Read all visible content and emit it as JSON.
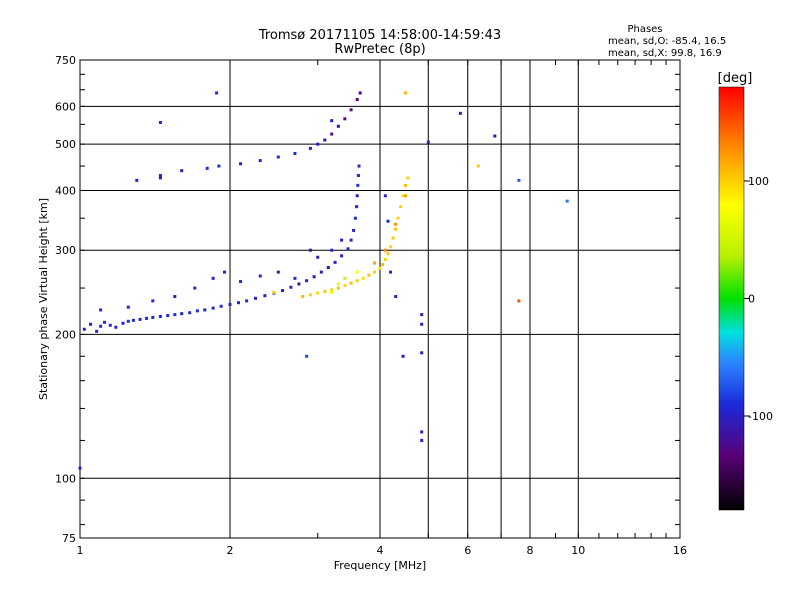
{
  "chart_data": {
    "type": "scatter",
    "title": "Tromsø 20171105 14:58:00-14:59:43",
    "subtitle": "RwPretec (8p)",
    "stats": {
      "heading": "Phases",
      "o_line": "mean, sd,O: -85.4, 16.5",
      "x_line": "mean, sd,X:  99.8, 16.9"
    },
    "xlabel": "Frequency [MHz]",
    "ylabel": "Stationary phase Virtual Height [km]",
    "x_scale": "log",
    "y_scale": "log",
    "xlim": [
      1,
      16
    ],
    "ylim": [
      75,
      750
    ],
    "x_ticks": [
      1,
      2,
      4,
      6,
      8,
      10,
      16
    ],
    "x_tick_labels": [
      "1",
      "2",
      "4",
      "6",
      "8",
      "10",
      "16"
    ],
    "y_ticks": [
      75,
      100,
      200,
      300,
      400,
      500,
      600,
      750
    ],
    "y_tick_labels": [
      "75",
      "100",
      "200",
      "300",
      "400",
      "500",
      "600",
      "750"
    ],
    "x_grid": [
      2,
      4,
      5,
      6,
      7,
      8,
      10
    ],
    "y_grid": [
      100,
      200,
      300,
      400,
      500,
      600
    ],
    "colorbar": {
      "label": "[deg]",
      "range": [
        -180,
        180
      ],
      "ticks": [
        100,
        0,
        -100
      ],
      "tick_labels": [
        "100",
        "0",
        "-100"
      ]
    },
    "series": [
      {
        "mode": "O",
        "phase_mean": -85.4,
        "points": [
          [
            1.02,
            205,
            -95
          ],
          [
            1.05,
            210,
            -90
          ],
          [
            1.08,
            203,
            -98
          ],
          [
            1.1,
            208,
            -92
          ],
          [
            1.12,
            212,
            -88
          ],
          [
            1.15,
            209,
            -94
          ],
          [
            1.18,
            207,
            -100
          ],
          [
            1.22,
            211,
            -91
          ],
          [
            1.25,
            213,
            -87
          ],
          [
            1.28,
            214,
            -96
          ],
          [
            1.32,
            215,
            -93
          ],
          [
            1.36,
            216,
            -90
          ],
          [
            1.4,
            217,
            -99
          ],
          [
            1.45,
            218,
            -92
          ],
          [
            1.5,
            219,
            -95
          ],
          [
            1.55,
            220,
            -89
          ],
          [
            1.6,
            221,
            -102
          ],
          [
            1.66,
            222,
            -94
          ],
          [
            1.72,
            224,
            -88
          ],
          [
            1.78,
            225,
            -97
          ],
          [
            1.85,
            227,
            -93
          ],
          [
            1.92,
            229,
            -90
          ],
          [
            2.0,
            231,
            -100
          ],
          [
            2.08,
            233,
            -95
          ],
          [
            2.16,
            235,
            -91
          ],
          [
            2.25,
            238,
            -96
          ],
          [
            2.35,
            241,
            -99
          ],
          [
            2.45,
            244,
            -92
          ],
          [
            2.55,
            247,
            -104
          ],
          [
            2.65,
            251,
            -94
          ],
          [
            2.75,
            255,
            -110
          ],
          [
            2.85,
            259,
            -98
          ],
          [
            2.95,
            264,
            -115
          ],
          [
            3.05,
            270,
            -102
          ],
          [
            3.15,
            276,
            -120
          ],
          [
            3.25,
            283,
            -95
          ],
          [
            3.35,
            292,
            -108
          ],
          [
            3.45,
            302,
            -92
          ],
          [
            3.5,
            315,
            -100
          ],
          [
            3.54,
            330,
            -96
          ],
          [
            3.57,
            350,
            -90
          ],
          [
            3.59,
            370,
            -98
          ],
          [
            3.6,
            390,
            -93
          ],
          [
            3.61,
            410,
            -87
          ],
          [
            3.62,
            430,
            -95
          ],
          [
            3.63,
            450,
            -90
          ],
          [
            1.1,
            225,
            -92
          ],
          [
            1.25,
            228,
            -95
          ],
          [
            1.4,
            235,
            -90
          ],
          [
            1.55,
            240,
            -98
          ],
          [
            1.7,
            250,
            -93
          ],
          [
            1.85,
            262,
            -100
          ],
          [
            1.95,
            270,
            -96
          ],
          [
            2.1,
            258,
            -91
          ],
          [
            2.3,
            265,
            -94
          ],
          [
            2.5,
            270,
            -99
          ],
          [
            2.7,
            262,
            -92
          ],
          [
            3.0,
            290,
            -105
          ],
          [
            3.2,
            300,
            -97
          ],
          [
            1.3,
            420,
            -100
          ],
          [
            1.45,
            430,
            -96
          ],
          [
            1.6,
            440,
            -98
          ],
          [
            1.8,
            445,
            -92
          ],
          [
            1.9,
            450,
            -90
          ],
          [
            2.1,
            455,
            -95
          ],
          [
            2.3,
            462,
            -93
          ],
          [
            2.5,
            470,
            -90
          ],
          [
            2.7,
            478,
            -94
          ],
          [
            2.9,
            490,
            -98
          ],
          [
            3.0,
            500,
            -105
          ],
          [
            3.1,
            510,
            -112
          ],
          [
            3.2,
            525,
            -120
          ],
          [
            3.3,
            545,
            -118
          ],
          [
            3.4,
            565,
            -125
          ],
          [
            3.5,
            590,
            -130
          ],
          [
            3.6,
            620,
            -135
          ],
          [
            3.65,
            640,
            -128
          ]
        ]
      },
      {
        "mode": "X",
        "phase_mean": 99.8,
        "points": [
          [
            2.8,
            240,
            110
          ],
          [
            2.9,
            242,
            100
          ],
          [
            3.0,
            244,
            95
          ],
          [
            3.1,
            246,
            105
          ],
          [
            3.2,
            248,
            98
          ],
          [
            3.3,
            250,
            102
          ],
          [
            3.4,
            253,
            96
          ],
          [
            3.5,
            256,
            108
          ],
          [
            3.6,
            259,
            100
          ],
          [
            3.7,
            262,
            94
          ],
          [
            3.8,
            266,
            104
          ],
          [
            3.9,
            270,
            99
          ],
          [
            4.0,
            275,
            92
          ],
          [
            4.05,
            280,
            110
          ],
          [
            4.1,
            287,
            98
          ],
          [
            4.15,
            295,
            103
          ],
          [
            4.2,
            305,
            95
          ],
          [
            4.25,
            318,
            100
          ],
          [
            4.3,
            332,
            106
          ],
          [
            4.35,
            350,
            97
          ],
          [
            4.4,
            370,
            102
          ],
          [
            4.45,
            390,
            94
          ],
          [
            4.5,
            410,
            108
          ],
          [
            4.55,
            425,
            100
          ],
          [
            3.3,
            255,
            60
          ],
          [
            3.4,
            262,
            45
          ],
          [
            3.2,
            245,
            70
          ],
          [
            3.6,
            270,
            80
          ],
          [
            3.9,
            282,
            120
          ],
          [
            4.1,
            300,
            130
          ],
          [
            4.3,
            340,
            125
          ],
          [
            4.5,
            390,
            118
          ]
        ]
      }
    ],
    "scattered_points": [
      [
        1.0,
        105,
        -100
      ],
      [
        1.45,
        425,
        -95
      ],
      [
        1.45,
        555,
        -90
      ],
      [
        1.88,
        640,
        -100
      ],
      [
        2.45,
        245,
        100
      ],
      [
        2.85,
        180,
        -80
      ],
      [
        2.9,
        300,
        -120
      ],
      [
        3.2,
        560,
        -90
      ],
      [
        3.35,
        315,
        -95
      ],
      [
        4.1,
        390,
        -100
      ],
      [
        4.15,
        345,
        -95
      ],
      [
        4.2,
        270,
        -100
      ],
      [
        4.3,
        240,
        -95
      ],
      [
        4.45,
        180,
        -100
      ],
      [
        4.5,
        640,
        110
      ],
      [
        4.85,
        220,
        -100
      ],
      [
        4.85,
        210,
        -95
      ],
      [
        4.85,
        183,
        -100
      ],
      [
        4.85,
        125,
        -100
      ],
      [
        4.85,
        120,
        -95
      ],
      [
        5.0,
        505,
        -90
      ],
      [
        5.8,
        580,
        -100
      ],
      [
        6.3,
        450,
        100
      ],
      [
        6.8,
        520,
        -110
      ],
      [
        7.6,
        420,
        -70
      ],
      [
        7.6,
        235,
        150
      ],
      [
        9.5,
        380,
        -60
      ]
    ]
  }
}
